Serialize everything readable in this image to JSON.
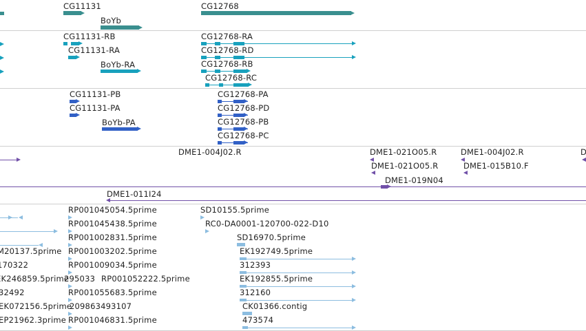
{
  "colors": {
    "gene": "#3a8f8f",
    "mrna": "#18a1bd",
    "protein": "#3160c6",
    "clone": "#7150a8",
    "est": "#8cbde0",
    "divider": "#cfcfcf"
  },
  "tracks": {
    "genes": {
      "labels": [
        "CG11131",
        "BoYb",
        "CG12768"
      ]
    },
    "transcripts": {
      "labels": [
        "CG11131-RB",
        "CG11131-RA",
        "BoYb-RA",
        "CG12768-RA",
        "CG12768-RD",
        "CG12768-RB",
        "CG12768-RC"
      ]
    },
    "proteins": {
      "labels": [
        "CG11131-PB",
        "CG11131-PA",
        "BoYb-PA",
        "CG12768-PA",
        "CG12768-PD",
        "CG12768-PB",
        "CG12768-PC"
      ]
    },
    "clones": {
      "labels": [
        "DME1-004J02.R",
        "DME1-021O05.R",
        "DME1-004J02.R",
        "D",
        "DME1-021O05.R",
        "DME1-015B10.F",
        "DME1-019N04",
        "DME1-011I24"
      ]
    },
    "ests": {
      "labels": [
        "RP001045054.5prime",
        "SD10155.5prime",
        "RP001045438.5prime",
        "RC0-DA0001-120700-022-D10",
        "RP001002831.5prime",
        "SD16970.5prime",
        "M20137.5prime",
        "RP001003202.5prime",
        "EK192749.5prime",
        "170322",
        "RP001009034.5prime",
        "312393",
        "EK246859.5prime",
        "295033",
        "RP001052222.5prime",
        "EK192855.5prime",
        "32492",
        "RP001055683.5prime",
        "312160",
        "EK072156.5prime",
        "209863493107",
        "CK01366.contig",
        "EP21962.3prime",
        "RP001046831.5prime",
        "473574"
      ]
    }
  }
}
